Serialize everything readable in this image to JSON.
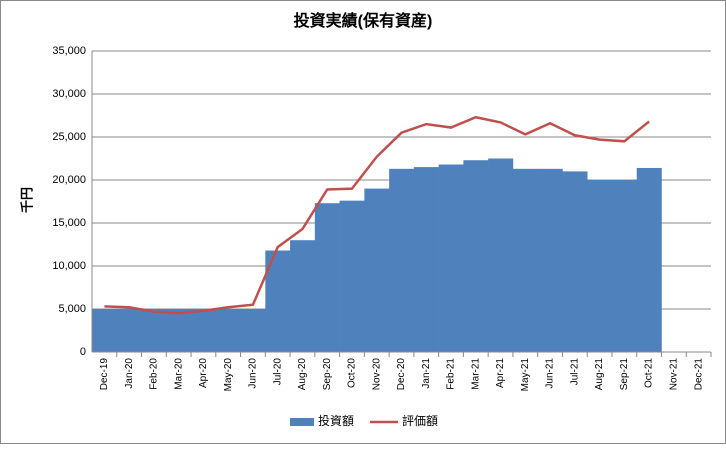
{
  "chart_data": {
    "type": "bar",
    "title": "投資実績(保有資産)",
    "y_label": "千円",
    "categories": [
      "Dec-19",
      "Jan-20",
      "Feb-20",
      "Mar-20",
      "Apr-20",
      "May-20",
      "Jun-20",
      "Jul-20",
      "Aug-20",
      "Sep-20",
      "Oct-20",
      "Nov-20",
      "Dec-20",
      "Jan-21",
      "Feb-21",
      "Mar-21",
      "Apr-21",
      "May-21",
      "Jun-21",
      "Jul-21",
      "Aug-21",
      "Sep-21",
      "Oct-21",
      "Nov-21",
      "Dec-21"
    ],
    "series": [
      {
        "name": "投資額",
        "type": "bar",
        "color": "#4f81bd",
        "values": [
          5000,
          5000,
          5000,
          5000,
          5000,
          5000,
          5000,
          11800,
          13000,
          17300,
          17600,
          19000,
          21300,
          21500,
          21800,
          22300,
          22500,
          21300,
          21300,
          21000,
          20000,
          20000,
          21400,
          null,
          null
        ]
      },
      {
        "name": "評価額",
        "type": "line",
        "color": "#c0504d",
        "values": [
          5300,
          5200,
          4700,
          4500,
          4800,
          5200,
          5500,
          12200,
          14300,
          18900,
          19000,
          22700,
          25500,
          26500,
          26100,
          27300,
          26700,
          25300,
          26600,
          25200,
          24700,
          24500,
          26800,
          null,
          null
        ]
      }
    ],
    "ylim": [
      0,
      35000
    ],
    "yticks": [
      0,
      {
        "value": 5000,
        "label": "5,000"
      },
      {
        "value": 10000,
        "label": "10,000"
      },
      {
        "value": 15000,
        "label": "15,000"
      },
      {
        "value": 20000,
        "label": "20,000"
      },
      {
        "value": 25000,
        "label": "25,000"
      },
      {
        "value": 30000,
        "label": "30,000"
      },
      {
        "value": 35000,
        "label": "35,000"
      }
    ],
    "grid": true,
    "legend": "bottom"
  }
}
